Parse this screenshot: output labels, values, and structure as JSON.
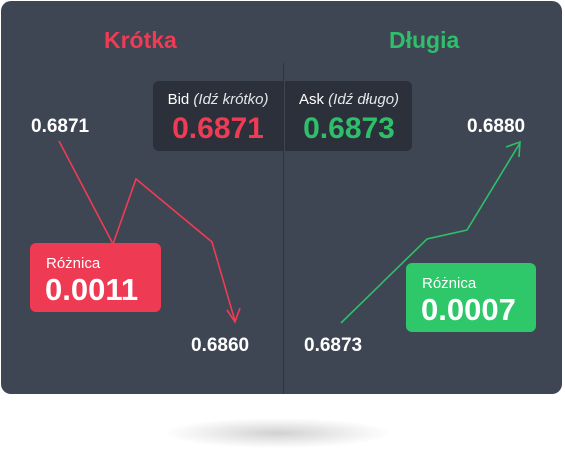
{
  "short": {
    "heading": "Krótka",
    "start_price": "0.6871",
    "end_price": "0.6860",
    "difference_label": "Różnica",
    "difference_value": "0.0011",
    "color": "#ef3c54"
  },
  "long": {
    "heading": "Długia",
    "start_price": "0.6873",
    "end_price": "0.6880",
    "difference_label": "Różnica",
    "difference_value": "0.0007",
    "color": "#2fbf6a"
  },
  "quote": {
    "bid_label": "Bid",
    "bid_hint": "(Idź krótko)",
    "bid_value": "0.6871",
    "ask_label": "Ask",
    "ask_hint": "(Idź długo)",
    "ask_value": "0.6873"
  }
}
